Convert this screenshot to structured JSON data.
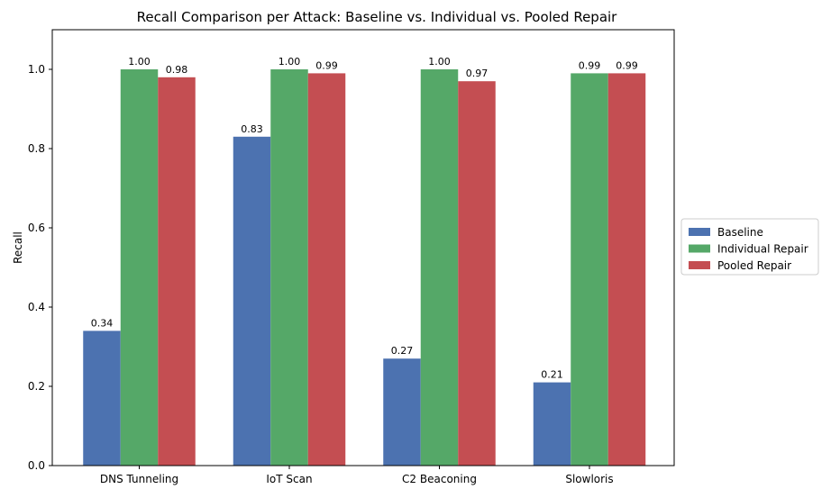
{
  "chart_data": {
    "type": "bar",
    "title": "Recall Comparison per Attack: Baseline vs. Individual vs. Pooled Repair",
    "xlabel": "",
    "ylabel": "Recall",
    "ylim": [
      0,
      1.1
    ],
    "yticks": [
      "0.0",
      "0.2",
      "0.4",
      "0.6",
      "0.8",
      "1.0"
    ],
    "categories": [
      "DNS Tunneling",
      "IoT Scan",
      "C2 Beaconing",
      "Slowloris"
    ],
    "series": [
      {
        "name": "Baseline",
        "color": "#4c72b0",
        "values": [
          0.34,
          0.83,
          0.27,
          0.21
        ],
        "labels": [
          "0.34",
          "0.83",
          "0.27",
          "0.21"
        ]
      },
      {
        "name": "Individual Repair",
        "color": "#55a868",
        "values": [
          1.0,
          1.0,
          1.0,
          0.99
        ],
        "labels": [
          "1.00",
          "1.00",
          "1.00",
          "0.99"
        ]
      },
      {
        "name": "Pooled Repair",
        "color": "#c44e52",
        "values": [
          0.98,
          0.99,
          0.97,
          0.99
        ],
        "labels": [
          "0.98",
          "0.99",
          "0.97",
          "0.99"
        ]
      }
    ],
    "grid": false,
    "legend_position": "right"
  }
}
